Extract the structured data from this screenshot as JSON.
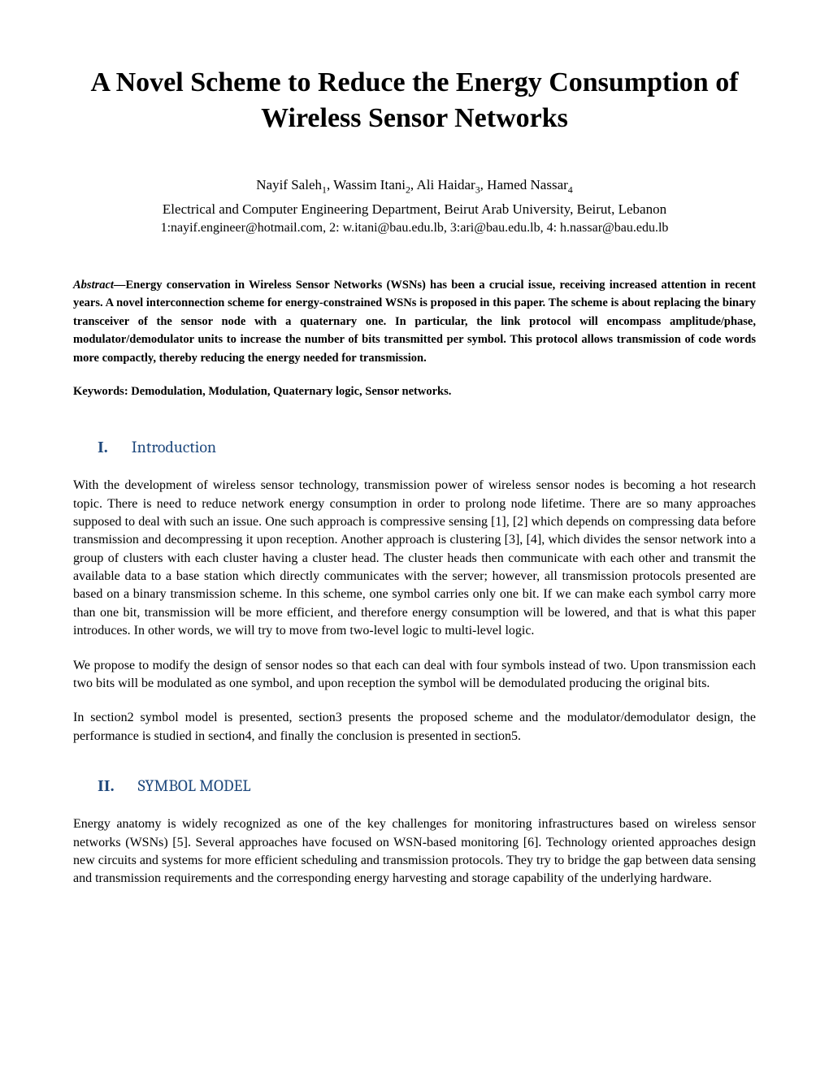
{
  "title": "A Novel Scheme to Reduce the Energy Consumption of Wireless Sensor Networks",
  "authors_html": "Nayif Saleh<sub>1</sub>, Wassim Itani<sub>2</sub>, Ali Haidar<sub>3</sub>, Hamed Nassar<sub>4</sub>",
  "affiliation": "Electrical and Computer Engineering Department, Beirut Arab University, Beirut, Lebanon",
  "emails": "1:nayif.engineer@hotmail.com, 2: w.itani@bau.edu.lb, 3:ari@bau.edu.lb, 4: h.nassar@bau.edu.lb",
  "abstract_label": "Abstract—",
  "abstract_text": "Energy conservation in Wireless Sensor Networks (WSNs) has been a crucial issue, receiving increased attention in recent years. A novel interconnection scheme for energy-constrained WSNs is proposed in this paper.  The scheme is about replacing the binary transceiver of the sensor node with a quaternary one.  In particular, the link protocol will encompass amplitude/phase, modulator/demodulator units to increase the number of bits transmitted per symbol. This protocol allows transmission of code words more compactly, thereby reducing the energy needed for transmission.",
  "keywords": "Keywords: Demodulation, Modulation, Quaternary logic, Sensor networks.",
  "sections": [
    {
      "roman": "I.",
      "title": "Introduction",
      "paragraphs": [
        "With the development of wireless sensor technology, transmission power of wireless sensor nodes is becoming a hot research topic. There is need to reduce network energy consumption in order to prolong node lifetime. There are so many approaches supposed to deal with such an issue. One such approach is compressive sensing [1], [2] which depends on compressing data before transmission and decompressing it upon reception. Another approach is clustering [3], [4], which divides the sensor network into a group of clusters with each cluster having a cluster head. The cluster heads then communicate with each other and transmit the available data to a base station which directly communicates with the server; however, all transmission protocols presented are based on a binary transmission scheme.  In this scheme, one symbol carries only one bit.  If we can make each symbol carry more than one bit, transmission will be more efficient, and therefore energy consumption will be lowered, and that is what this paper introduces.  In other words, we will try to move from two-level logic to multi-level logic.",
        "We propose to modify the design of sensor nodes so that each can deal with four symbols instead of two.    Upon transmission each two bits will be modulated as one symbol, and upon reception the symbol will be demodulated producing the original bits.",
        "In section2 symbol model is presented, section3 presents the proposed scheme and the modulator/demodulator design, the performance is studied in section4, and finally the conclusion is presented in section5."
      ]
    },
    {
      "roman": "II.",
      "title": "SYMBOL MODEL",
      "paragraphs": [
        "Energy anatomy is widely recognized as one of the key challenges for monitoring infrastructures based on wireless sensor networks (WSNs) [5]. Several approaches have focused on WSN-based monitoring [6]. Technology oriented approaches design new circuits and systems for more efficient scheduling and transmission protocols.  They try to bridge the gap between data sensing and transmission requirements and the corresponding energy harvesting and storage capability of the underlying hardware."
      ]
    }
  ],
  "colors": {
    "heading": "#1f497d",
    "text": "#000000",
    "background": "#ffffff"
  },
  "typography": {
    "title_fontsize": 34,
    "body_fontsize": 16,
    "abstract_fontsize": 14.5,
    "heading_fontsize": 20,
    "authors_fontsize": 17
  }
}
